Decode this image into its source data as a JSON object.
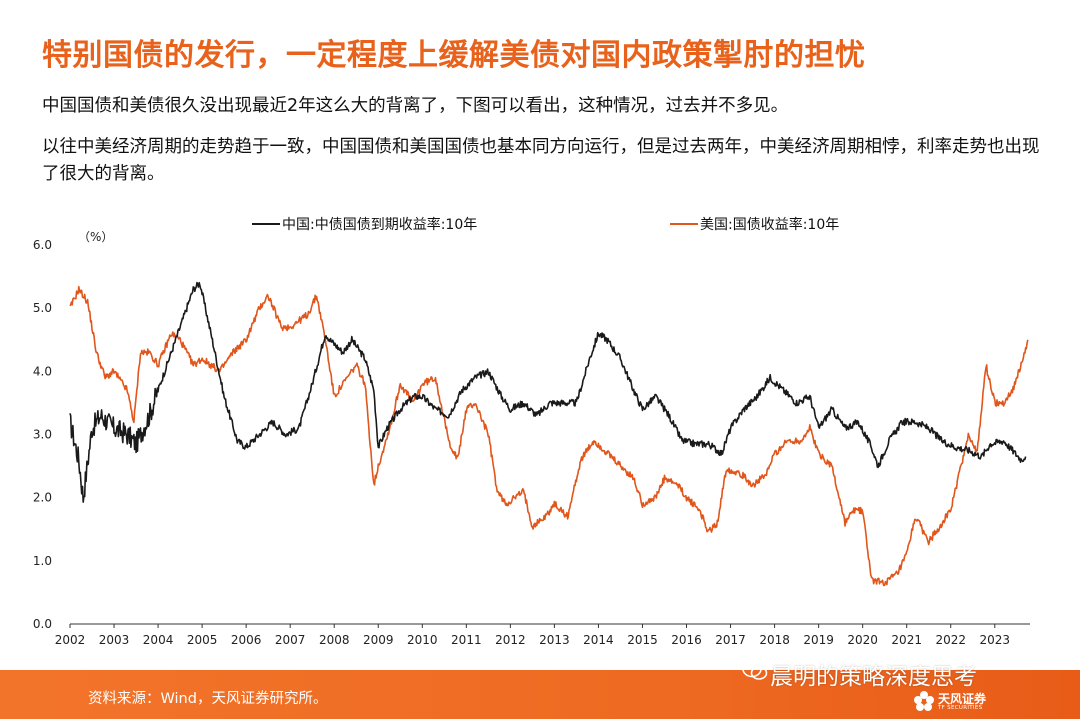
{
  "slide": {
    "title": "特别国债的发行，一定程度上缓解美债对国内政策掣肘的担忧",
    "para1": "中国国债和美债很久没出现最近2年这么大的背离了，下图可以看出，这种情况，过去并不多见。",
    "para2": "以往中美经济周期的走势趋于一致，中国国债和美国国债也基本同方向运行，但是过去两年，中美经济周期相悖，利率走势也出现了很大的背离。"
  },
  "footer": {
    "source": "资料来源：Wind，天风证券研究所。",
    "watermark": "晨明的策略深度思考",
    "logo_text": "天风证券",
    "logo_sub": "TF SECURITIES"
  },
  "colors": {
    "accent": "#e8621c",
    "china": "#1a1a1a",
    "us": "#e0561b"
  },
  "chart_data": {
    "type": "line",
    "unit_label": "（%）",
    "ylim": [
      0,
      6
    ],
    "yticks": [
      "0.0",
      "1.0",
      "2.0",
      "3.0",
      "4.0",
      "5.0",
      "6.0"
    ],
    "xlim": [
      2002,
      2023.75
    ],
    "xticks": [
      "2002",
      "2003",
      "2004",
      "2005",
      "2006",
      "2007",
      "2008",
      "2009",
      "2010",
      "2011",
      "2012",
      "2013",
      "2014",
      "2015",
      "2016",
      "2017",
      "2018",
      "2019",
      "2020",
      "2021",
      "2022",
      "2023"
    ],
    "series": [
      {
        "name": "中国:中债国债到期收益率:10年",
        "color": "#1a1a1a",
        "points": [
          [
            2002,
            3.2
          ],
          [
            2002.2,
            2.6
          ],
          [
            2002.3,
            2.0
          ],
          [
            2002.5,
            3.1
          ],
          [
            2002.7,
            3.3
          ],
          [
            2003,
            3.1
          ],
          [
            2003.3,
            3.0
          ],
          [
            2003.5,
            2.85
          ],
          [
            2003.8,
            3.3
          ],
          [
            2004,
            3.7
          ],
          [
            2004.3,
            4.3
          ],
          [
            2004.6,
            4.9
          ],
          [
            2004.8,
            5.3
          ],
          [
            2004.95,
            5.4
          ],
          [
            2005.2,
            4.6
          ],
          [
            2005.5,
            3.6
          ],
          [
            2005.8,
            2.9
          ],
          [
            2006,
            2.8
          ],
          [
            2006.3,
            3.0
          ],
          [
            2006.6,
            3.2
          ],
          [
            2006.9,
            3.0
          ],
          [
            2007.2,
            3.1
          ],
          [
            2007.5,
            3.8
          ],
          [
            2007.8,
            4.6
          ],
          [
            2007.9,
            4.5
          ],
          [
            2008.2,
            4.3
          ],
          [
            2008.4,
            4.5
          ],
          [
            2008.7,
            4.2
          ],
          [
            2008.9,
            3.7
          ],
          [
            2009,
            2.8
          ],
          [
            2009.2,
            3.1
          ],
          [
            2009.5,
            3.4
          ],
          [
            2009.8,
            3.6
          ],
          [
            2010,
            3.6
          ],
          [
            2010.3,
            3.4
          ],
          [
            2010.6,
            3.3
          ],
          [
            2010.9,
            3.7
          ],
          [
            2011.2,
            3.9
          ],
          [
            2011.5,
            4.0
          ],
          [
            2011.8,
            3.6
          ],
          [
            2012,
            3.4
          ],
          [
            2012.3,
            3.5
          ],
          [
            2012.6,
            3.3
          ],
          [
            2012.9,
            3.5
          ],
          [
            2013.2,
            3.5
          ],
          [
            2013.5,
            3.5
          ],
          [
            2013.8,
            4.2
          ],
          [
            2014,
            4.6
          ],
          [
            2014.2,
            4.5
          ],
          [
            2014.5,
            4.2
          ],
          [
            2014.8,
            3.7
          ],
          [
            2015,
            3.4
          ],
          [
            2015.3,
            3.6
          ],
          [
            2015.6,
            3.3
          ],
          [
            2015.9,
            2.9
          ],
          [
            2016.2,
            2.85
          ],
          [
            2016.5,
            2.85
          ],
          [
            2016.8,
            2.7
          ],
          [
            2017,
            3.1
          ],
          [
            2017.3,
            3.4
          ],
          [
            2017.6,
            3.6
          ],
          [
            2017.9,
            3.9
          ],
          [
            2018.2,
            3.7
          ],
          [
            2018.5,
            3.5
          ],
          [
            2018.8,
            3.6
          ],
          [
            2019,
            3.1
          ],
          [
            2019.3,
            3.4
          ],
          [
            2019.6,
            3.1
          ],
          [
            2019.9,
            3.2
          ],
          [
            2020.2,
            2.8
          ],
          [
            2020.35,
            2.5
          ],
          [
            2020.6,
            2.9
          ],
          [
            2020.9,
            3.2
          ],
          [
            2021.2,
            3.2
          ],
          [
            2021.5,
            3.1
          ],
          [
            2021.8,
            2.9
          ],
          [
            2022.1,
            2.8
          ],
          [
            2022.4,
            2.75
          ],
          [
            2022.7,
            2.65
          ],
          [
            2022.9,
            2.85
          ],
          [
            2023.2,
            2.9
          ],
          [
            2023.4,
            2.75
          ],
          [
            2023.6,
            2.6
          ],
          [
            2023.7,
            2.65
          ]
        ]
      },
      {
        "name": "美国:国债收益率:10年",
        "color": "#e0561b",
        "points": [
          [
            2002,
            5.0
          ],
          [
            2002.2,
            5.3
          ],
          [
            2002.4,
            5.1
          ],
          [
            2002.6,
            4.3
          ],
          [
            2002.8,
            3.9
          ],
          [
            2003,
            4.0
          ],
          [
            2003.3,
            3.7
          ],
          [
            2003.45,
            3.2
          ],
          [
            2003.6,
            4.3
          ],
          [
            2003.8,
            4.3
          ],
          [
            2004,
            4.1
          ],
          [
            2004.3,
            4.6
          ],
          [
            2004.5,
            4.5
          ],
          [
            2004.8,
            4.1
          ],
          [
            2005,
            4.2
          ],
          [
            2005.4,
            4.0
          ],
          [
            2005.7,
            4.3
          ],
          [
            2006,
            4.5
          ],
          [
            2006.3,
            5.0
          ],
          [
            2006.5,
            5.2
          ],
          [
            2006.8,
            4.7
          ],
          [
            2007,
            4.7
          ],
          [
            2007.4,
            4.9
          ],
          [
            2007.6,
            5.2
          ],
          [
            2007.8,
            4.5
          ],
          [
            2008,
            3.6
          ],
          [
            2008.2,
            3.8
          ],
          [
            2008.5,
            4.1
          ],
          [
            2008.7,
            3.8
          ],
          [
            2008.9,
            2.2
          ],
          [
            2009,
            2.5
          ],
          [
            2009.3,
            3.2
          ],
          [
            2009.5,
            3.8
          ],
          [
            2009.8,
            3.5
          ],
          [
            2010,
            3.8
          ],
          [
            2010.3,
            3.9
          ],
          [
            2010.6,
            2.9
          ],
          [
            2010.8,
            2.6
          ],
          [
            2011,
            3.4
          ],
          [
            2011.2,
            3.5
          ],
          [
            2011.5,
            3.0
          ],
          [
            2011.7,
            2.1
          ],
          [
            2011.9,
            1.9
          ],
          [
            2012.3,
            2.1
          ],
          [
            2012.5,
            1.55
          ],
          [
            2012.8,
            1.7
          ],
          [
            2013,
            1.9
          ],
          [
            2013.3,
            1.7
          ],
          [
            2013.6,
            2.6
          ],
          [
            2013.9,
            2.9
          ],
          [
            2014.2,
            2.7
          ],
          [
            2014.5,
            2.5
          ],
          [
            2014.8,
            2.3
          ],
          [
            2015,
            1.9
          ],
          [
            2015.3,
            2.0
          ],
          [
            2015.5,
            2.3
          ],
          [
            2015.8,
            2.2
          ],
          [
            2016,
            2.0
          ],
          [
            2016.3,
            1.8
          ],
          [
            2016.5,
            1.45
          ],
          [
            2016.7,
            1.6
          ],
          [
            2016.9,
            2.45
          ],
          [
            2017.2,
            2.4
          ],
          [
            2017.5,
            2.2
          ],
          [
            2017.8,
            2.35
          ],
          [
            2018,
            2.7
          ],
          [
            2018.3,
            2.9
          ],
          [
            2018.6,
            2.9
          ],
          [
            2018.8,
            3.1
          ],
          [
            2019,
            2.7
          ],
          [
            2019.3,
            2.5
          ],
          [
            2019.6,
            1.6
          ],
          [
            2019.8,
            1.8
          ],
          [
            2020,
            1.8
          ],
          [
            2020.2,
            0.7
          ],
          [
            2020.5,
            0.65
          ],
          [
            2020.8,
            0.8
          ],
          [
            2021,
            1.1
          ],
          [
            2021.2,
            1.7
          ],
          [
            2021.5,
            1.3
          ],
          [
            2021.8,
            1.6
          ],
          [
            2022,
            1.8
          ],
          [
            2022.2,
            2.4
          ],
          [
            2022.4,
            3.0
          ],
          [
            2022.6,
            2.7
          ],
          [
            2022.8,
            4.1
          ],
          [
            2023,
            3.5
          ],
          [
            2023.2,
            3.5
          ],
          [
            2023.4,
            3.7
          ],
          [
            2023.6,
            4.1
          ],
          [
            2023.75,
            4.5
          ]
        ]
      }
    ],
    "legend_position": "top",
    "grid": false
  }
}
